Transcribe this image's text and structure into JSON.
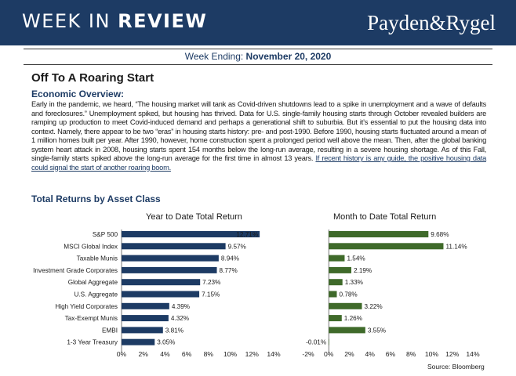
{
  "header": {
    "title_light": "WEEK IN ",
    "title_bold": "REVIEW",
    "logo_text": "Payden&Rygel",
    "colors": {
      "band": "#1d3b64"
    }
  },
  "week": {
    "label": "Week Ending: ",
    "date": "November 20, 2020"
  },
  "headline": "Off To A Roaring Start",
  "overview": {
    "heading": "Economic Overview:",
    "body": "Early in the pandemic, we heard, “The housing market will tank as Covid-driven shutdowns lead to a spike in unemployment and a wave of defaults and foreclosures.” Unemployment spiked, but housing has thrived. Data for U.S. single-family housing starts through October revealed builders are ramping up production to meet Covid-induced demand and perhaps a generational shift to suburbia. But it’s essential to put the housing data into context. Namely, there appear to be two “eras” in housing starts history: pre- and post-1990. Before 1990, housing starts fluctuated around a mean of 1 million homes built per year. After 1990, however, home construction spent a prolonged period well above the mean. Then, after the global banking system heart attack in 2008, housing starts spent 154 months below the long-run average, resulting in a severe housing shortage. As of this Fall, single-family starts spiked above the long-run average for the first time in almost 13 years. ",
    "link": "If recent history is any guide, the positive housing data could signal the start of another roaring boom."
  },
  "charts_heading": "Total Returns by Asset Class",
  "source": "Source: Bloomberg",
  "chart_data": [
    {
      "type": "bar",
      "orientation": "horizontal",
      "title": "Year to Date Total Return",
      "categories": [
        "S&P 500",
        "MSCI Global Index",
        "Taxable Munis",
        "Investment Grade Corporates",
        "Global Aggregate",
        "U.S. Aggregate",
        "High Yield Corporates",
        "Tax-Exempt Munis",
        "EMBI",
        "1-3 Year Treasury"
      ],
      "values": [
        12.71,
        9.57,
        8.94,
        8.77,
        7.23,
        7.15,
        4.39,
        4.32,
        3.81,
        3.05
      ],
      "data_labels": [
        "12.71%",
        "9.57%",
        "8.94%",
        "8.77%",
        "7.23%",
        "7.15%",
        "4.39%",
        "4.32%",
        "3.81%",
        "3.05%"
      ],
      "xlim": [
        0,
        14
      ],
      "xticks": [
        "0%",
        "2%",
        "4%",
        "6%",
        "8%",
        "10%",
        "12%",
        "14%"
      ],
      "color": "#1d3b64",
      "first_label_inside": true
    },
    {
      "type": "bar",
      "orientation": "horizontal",
      "title": "Month to Date Total Return",
      "categories": [
        "S&P 500",
        "MSCI Global Index",
        "Taxable Munis",
        "Investment Grade Corporates",
        "Global Aggregate",
        "U.S. Aggregate",
        "High Yield Corporates",
        "Tax-Exempt Munis",
        "EMBI",
        "1-3 Year Treasury"
      ],
      "values": [
        9.68,
        11.14,
        1.54,
        2.19,
        1.33,
        0.78,
        3.22,
        1.26,
        3.55,
        -0.01
      ],
      "data_labels": [
        "9.68%",
        "11.14%",
        "1.54%",
        "2.19%",
        "1.33%",
        "0.78%",
        "3.22%",
        "1.26%",
        "3.55%",
        "-0.01%"
      ],
      "xlim": [
        -2,
        14
      ],
      "xticks": [
        "-2%",
        "0%",
        "2%",
        "4%",
        "6%",
        "8%",
        "10%",
        "12%",
        "14%"
      ],
      "color": "#3f6a2a",
      "first_label_inside": false
    }
  ]
}
